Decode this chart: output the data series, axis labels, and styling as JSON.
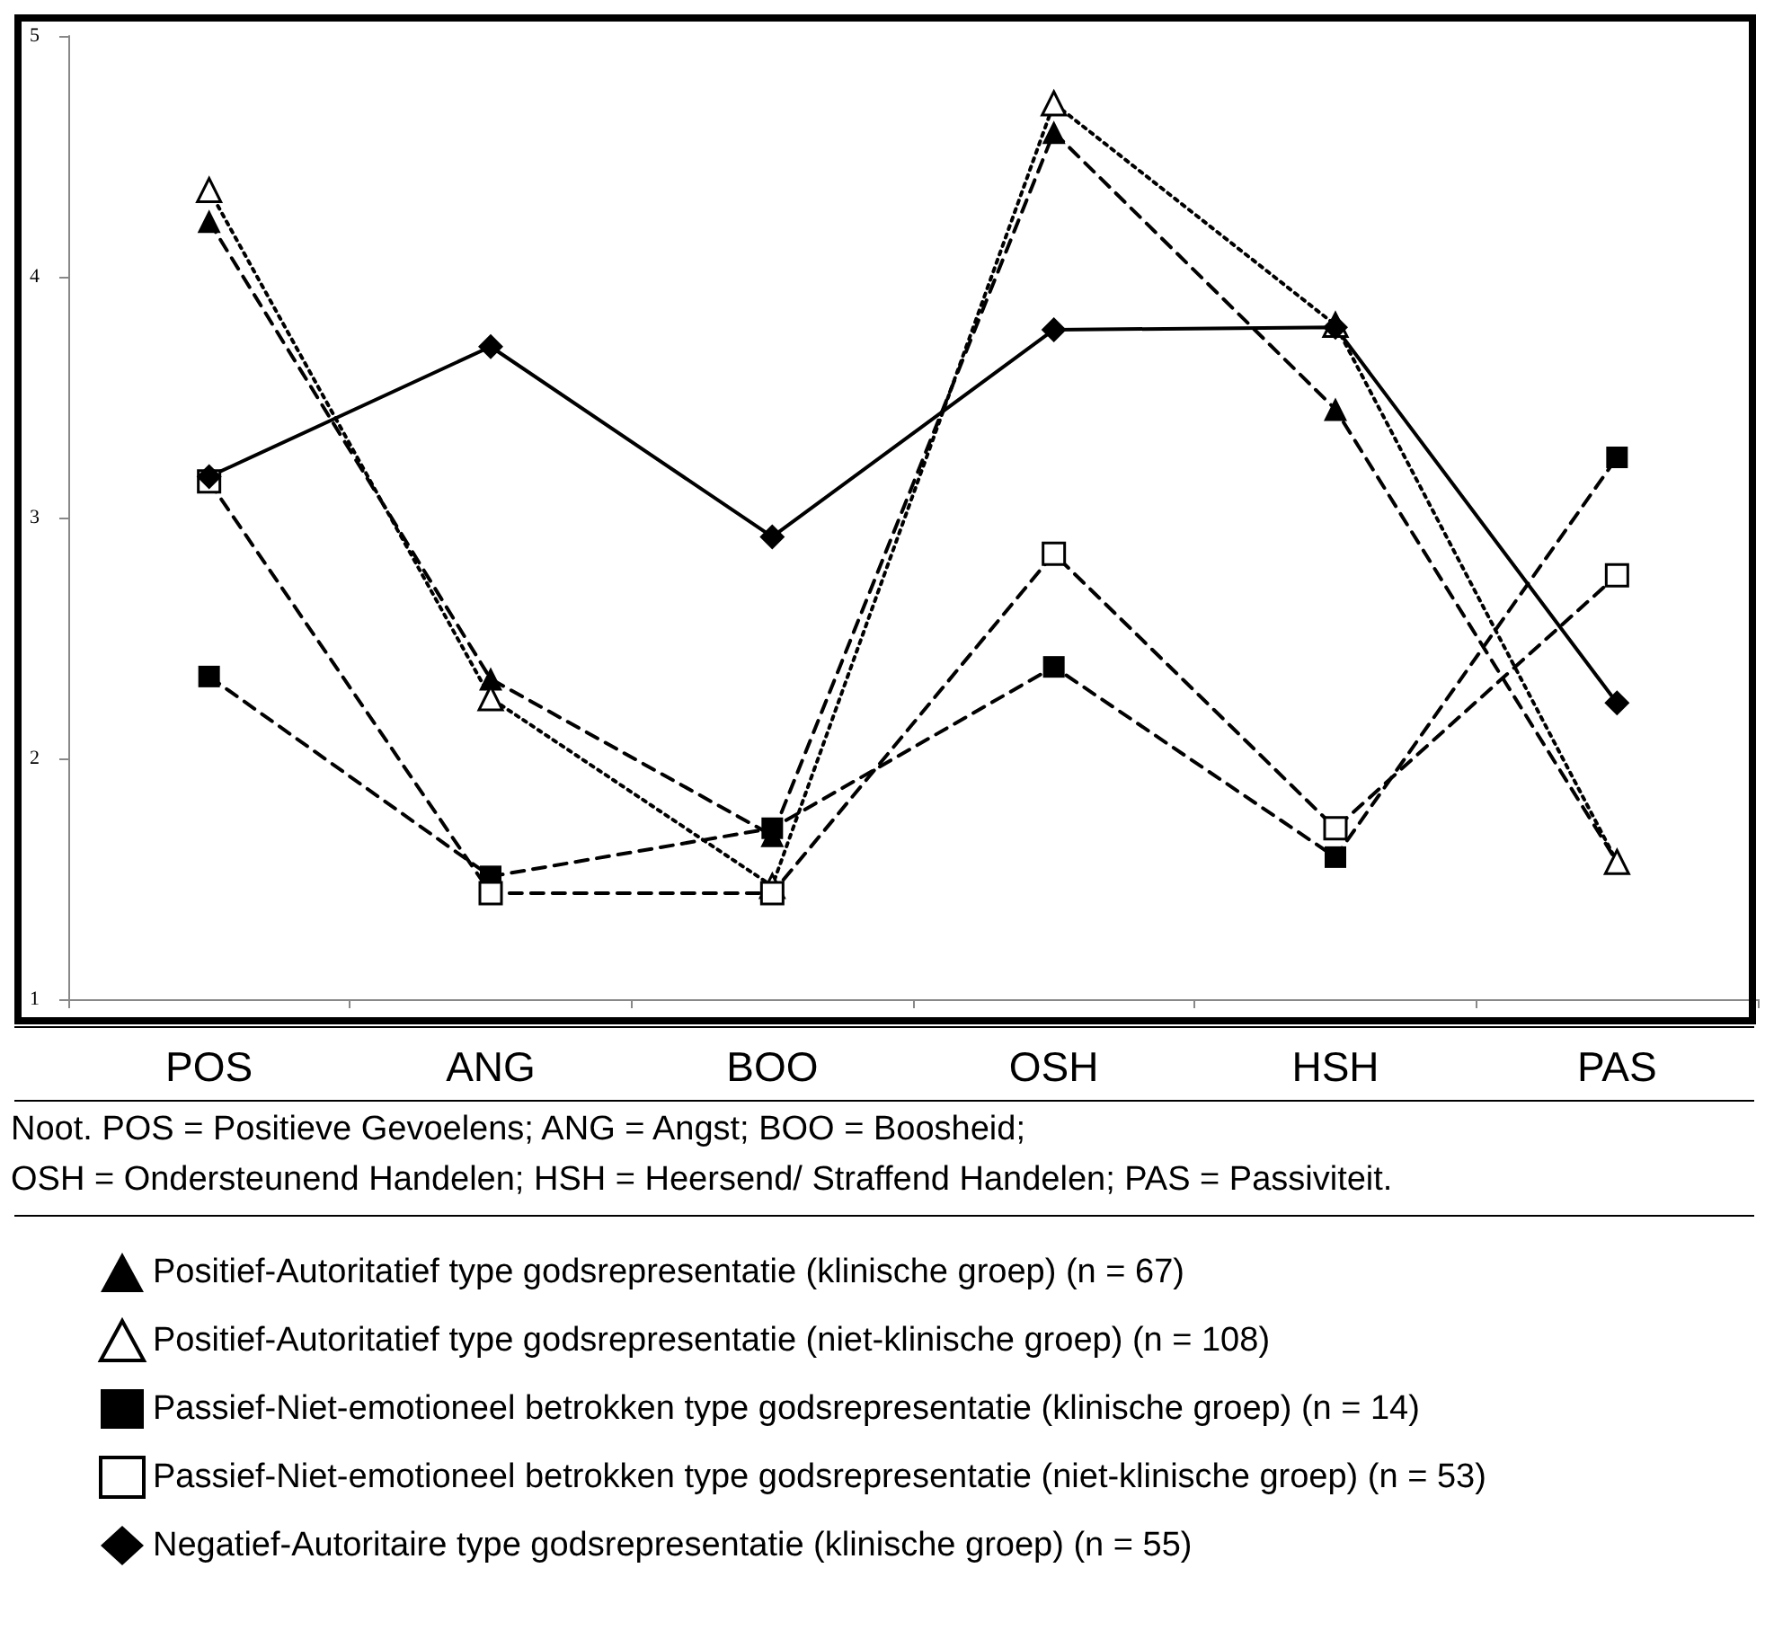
{
  "chart_data": {
    "type": "line",
    "categories": [
      "POS",
      "ANG",
      "BOO",
      "OSH",
      "HSH",
      "PAS"
    ],
    "ylim": [
      1,
      5
    ],
    "yticks": [
      1,
      2,
      3,
      4,
      5
    ],
    "grid": false,
    "legend": "bottom",
    "annotations": [
      "Noot. POS = Positieve Gevoelens; ANG = Angst; BOO = Boosheid;",
      "OSH = Ondersteunend Handelen; HSH = Heersend/ Straffend Handelen; PAS = Passiviteit."
    ],
    "series": [
      {
        "name": "Positief-Autoritatief type godsrepresentatie (klinische groep) (n = 67)",
        "color": "#000000",
        "marker": "triangle",
        "line_style": "dashed",
        "values": [
          4.23,
          2.33,
          1.68,
          4.6,
          3.45,
          1.57
        ]
      },
      {
        "name": "Positief-Autoritatief type godsrepresentatie (niet-klinische groep) (n = 108)",
        "color": "#000000",
        "marker": "triangle",
        "colors": [
          "#ffffff",
          "#ffffff",
          "#ffffff",
          "#ffffff",
          "#ffffff",
          "#ffffff"
        ],
        "line_style": "dotted",
        "values": [
          4.36,
          2.25,
          1.47,
          4.72,
          3.8,
          1.57
        ]
      },
      {
        "name": "Passief-Niet-emotioneel betrokken type godsrepresentatie (klinische groep) (n = 14)",
        "color": "#000000",
        "marker": "square",
        "line_style": "dashed",
        "values": [
          2.34,
          1.51,
          1.71,
          2.38,
          1.59,
          3.25
        ]
      },
      {
        "name": "Passief-Niet-emotioneel betrokken type godsrepresentatie (niet-klinische groep) (n = 53)",
        "color": "#000000",
        "marker": "square",
        "colors": [
          "#ffffff",
          "#ffffff",
          "#ffffff",
          "#ffffff",
          "#ffffff",
          "#ffffff"
        ],
        "line_style": "dashed",
        "values": [
          3.15,
          1.44,
          1.44,
          2.85,
          1.71,
          2.76
        ]
      },
      {
        "name": "Negatief-Autoritaire type godsrepresentatie (klinische groep) (n = 55)",
        "color": "#000000",
        "marker": "diamond",
        "line_style": "solid",
        "values": [
          3.17,
          3.71,
          2.92,
          3.78,
          3.79,
          2.23
        ]
      }
    ]
  }
}
